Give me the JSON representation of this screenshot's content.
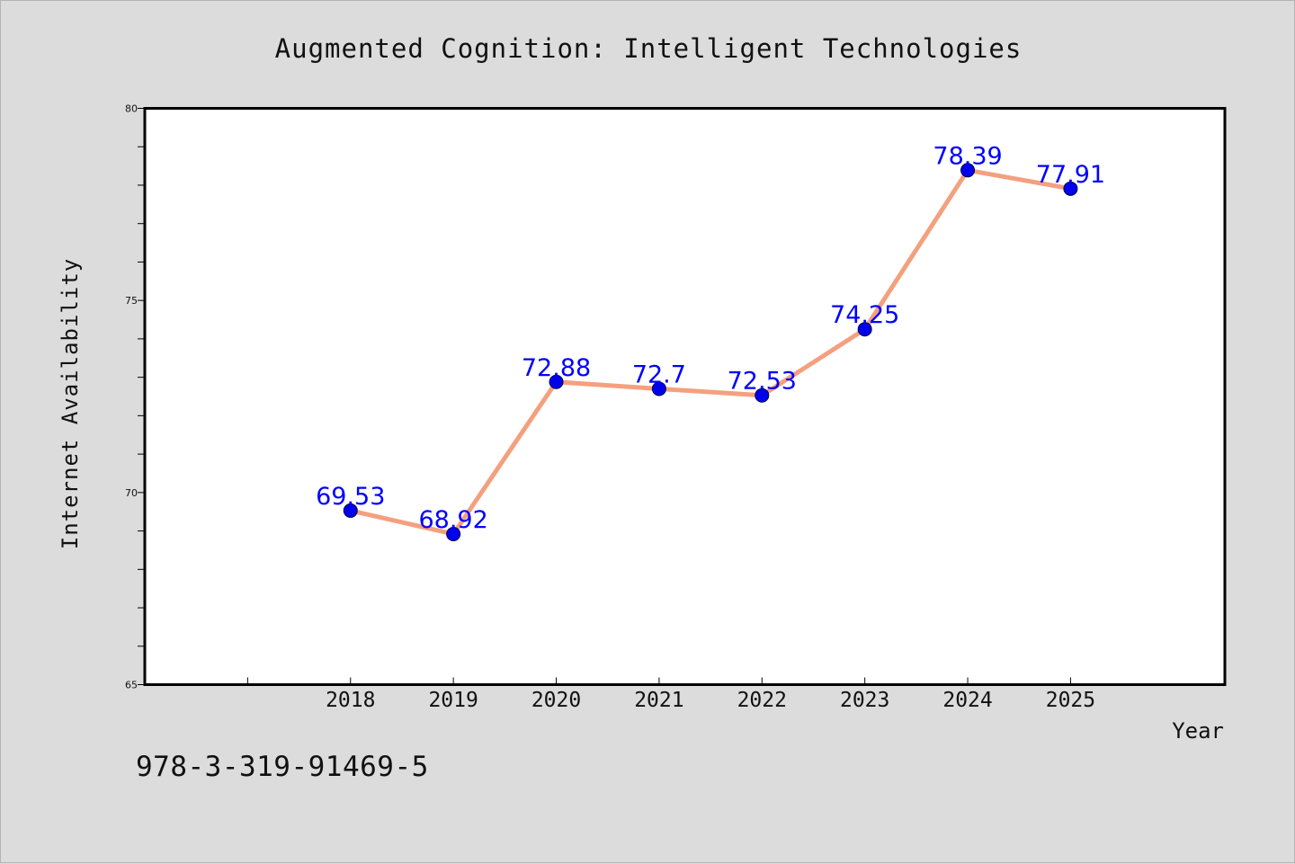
{
  "footnote": "978-3-319-91469-5",
  "chart_data": {
    "type": "line",
    "title": "Augmented Cognition: Intelligent Technologies",
    "xlabel": "Year",
    "ylabel": "Internet Availability",
    "categories": [
      "2018",
      "2019",
      "2020",
      "2021",
      "2022",
      "2023",
      "2024",
      "2025"
    ],
    "series": [
      {
        "values": [
          69.53,
          68.92,
          72.88,
          72.7,
          72.53,
          74.25,
          78.39,
          77.91
        ],
        "labels": [
          "69.53",
          "68.92",
          "72.88",
          "72.7",
          "72.53",
          "74.25",
          "78.39",
          "77.91"
        ],
        "line_color": "#f4a07e",
        "marker_color": "#0000ee",
        "label_color": "#0000ff"
      }
    ],
    "ylim": [
      65,
      80
    ],
    "y_ticks": [
      "65",
      "70",
      "75",
      "80"
    ],
    "y_minor_step": 1,
    "x_index_range": [
      -2,
      8.5
    ],
    "x_extra_ticks": [
      -2,
      -1
    ],
    "grid": false,
    "legend": "none"
  }
}
